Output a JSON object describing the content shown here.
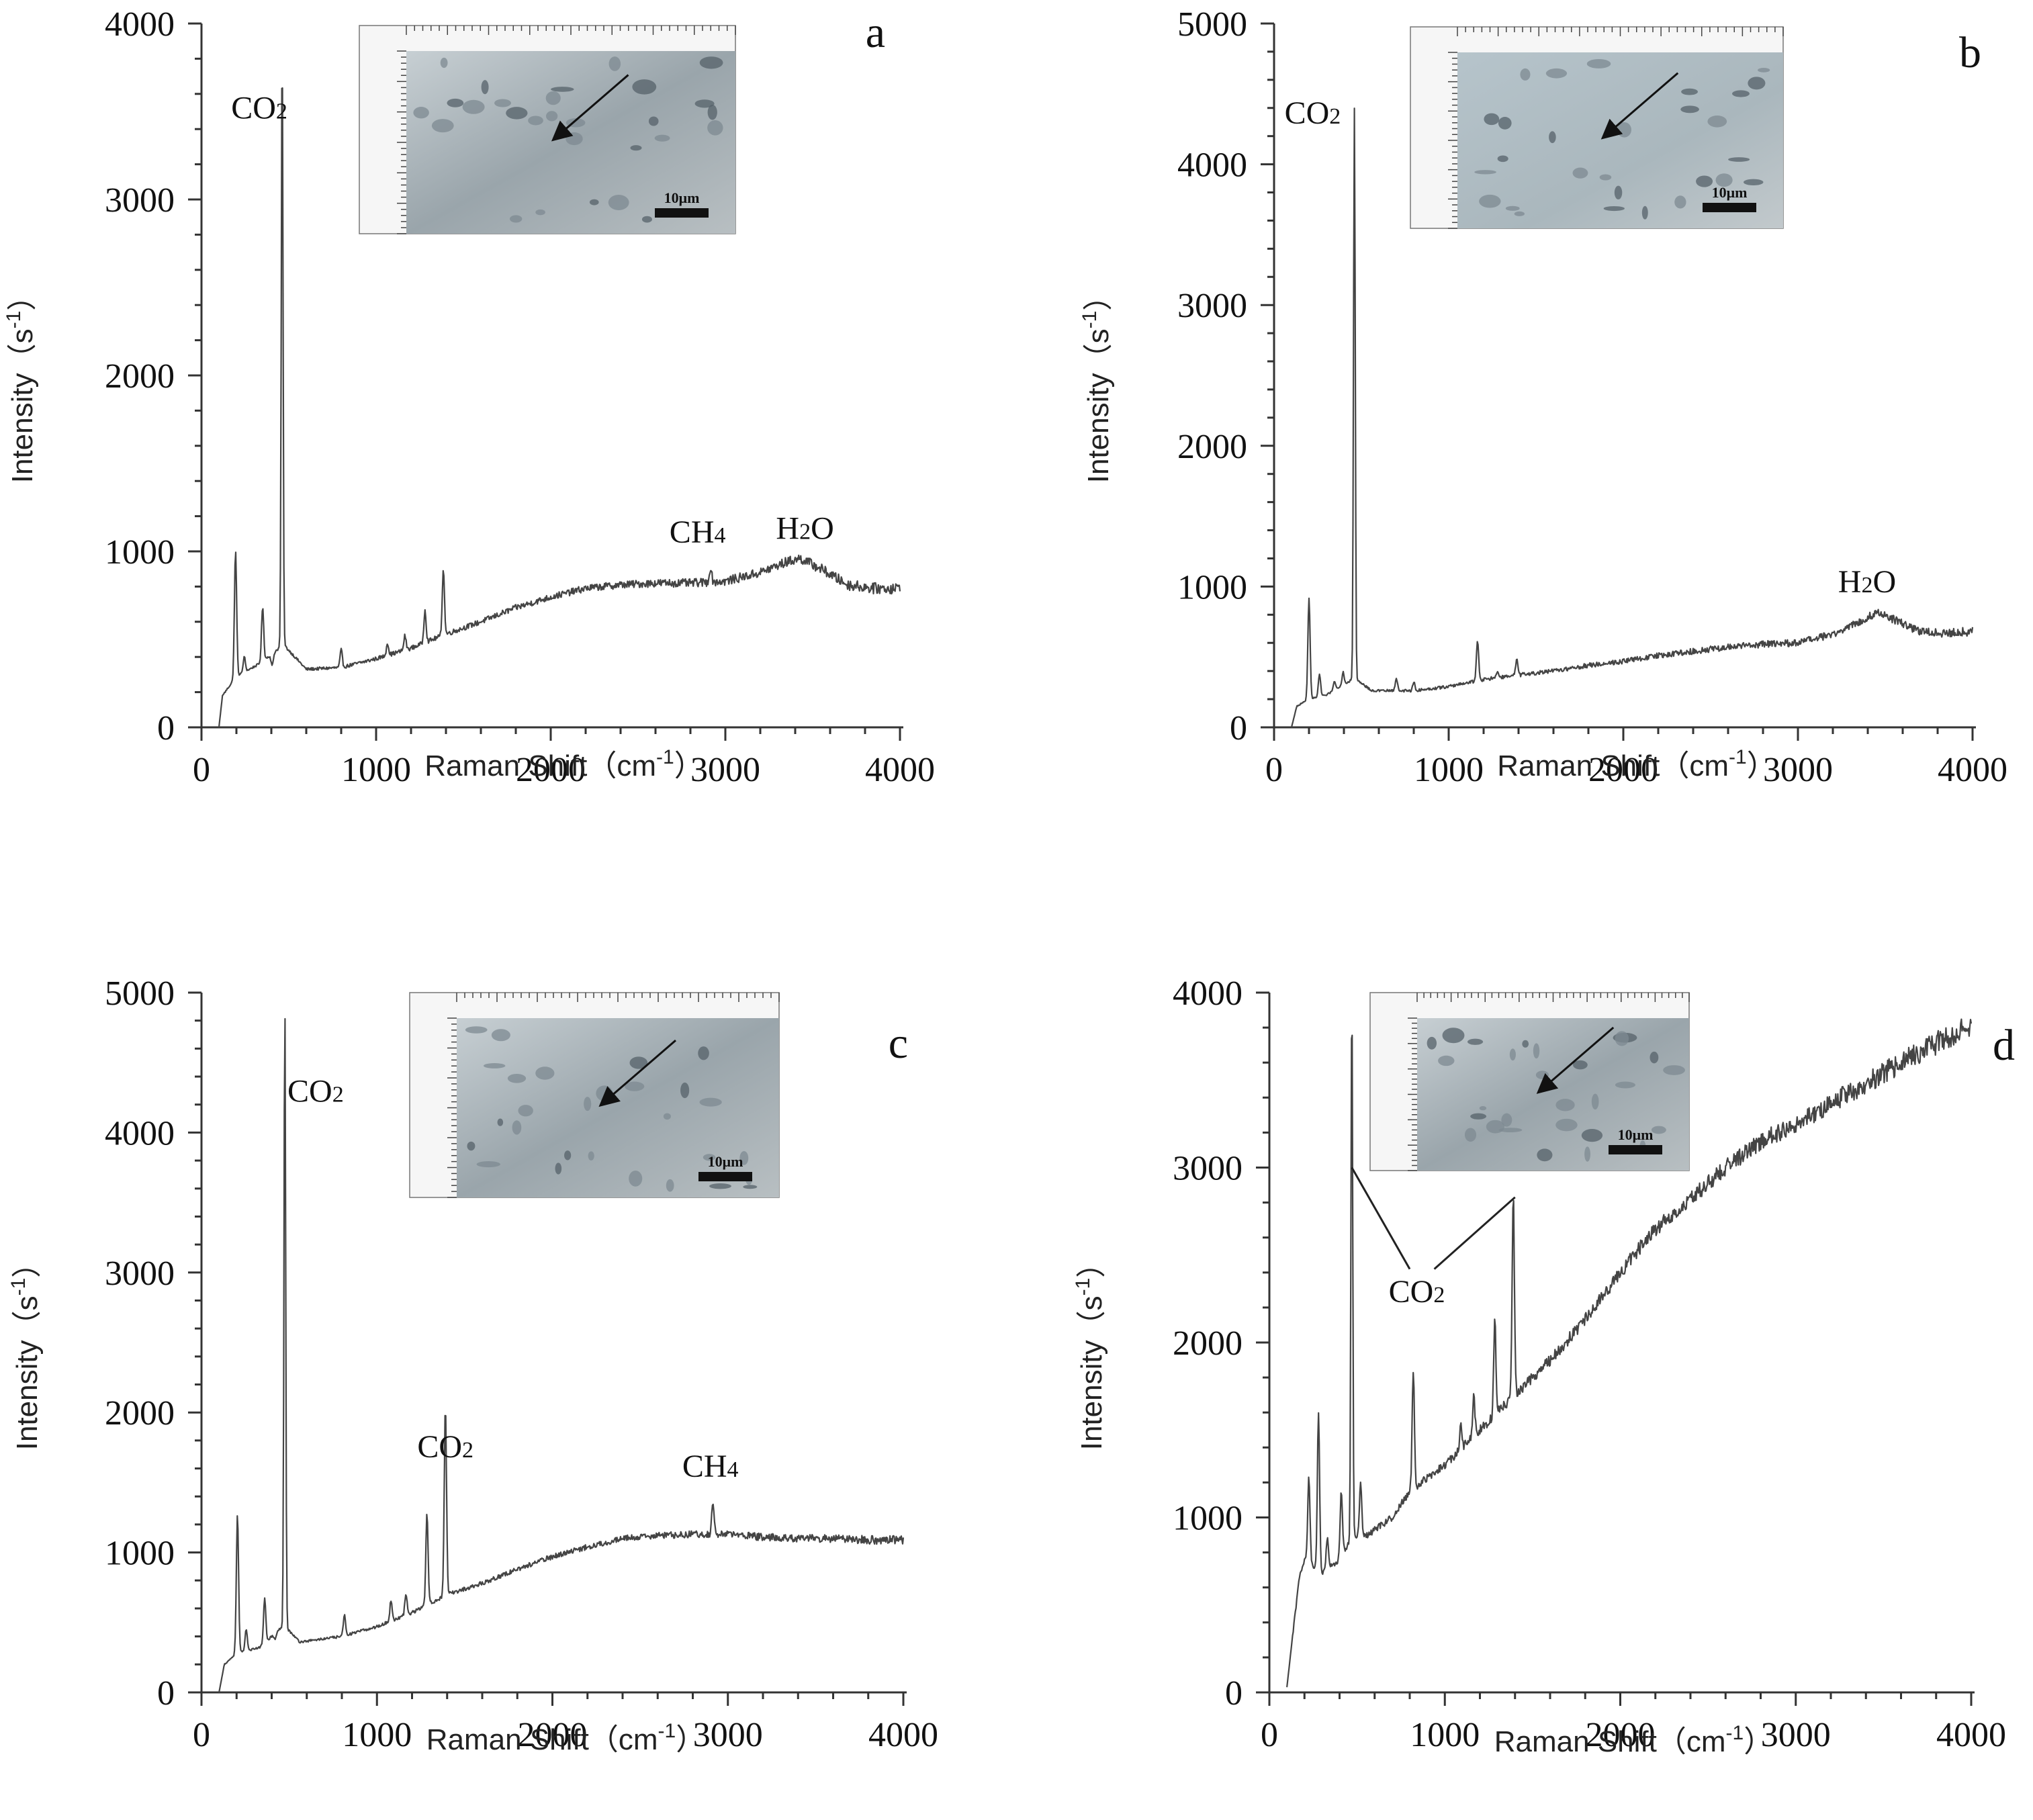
{
  "chart_data": [
    {
      "panel": "a",
      "type": "line",
      "xlabel": "Raman Shift（cm",
      "xlabel_sup": "-1",
      "xlabel_close": "）",
      "ylabel": "Intensity（s",
      "ylabel_sup": "-1",
      "ylabel_close": "）",
      "xlim": [
        0,
        4000
      ],
      "ylim": [
        0,
        4000
      ],
      "xticks": [
        0,
        1000,
        2000,
        3000,
        4000
      ],
      "yticks": [
        0,
        1000,
        2000,
        3000,
        4000
      ],
      "baseline": [
        [
          100,
          0
        ],
        [
          120,
          180
        ],
        [
          200,
          290
        ],
        [
          330,
          360
        ],
        [
          470,
          470
        ],
        [
          600,
          330
        ],
        [
          800,
          340
        ],
        [
          1000,
          390
        ],
        [
          1200,
          450
        ],
        [
          1400,
          530
        ],
        [
          1600,
          600
        ],
        [
          1800,
          680
        ],
        [
          2000,
          740
        ],
        [
          2200,
          790
        ],
        [
          2400,
          810
        ],
        [
          2600,
          820
        ],
        [
          2800,
          820
        ],
        [
          3000,
          830
        ],
        [
          3200,
          880
        ],
        [
          3350,
          940
        ],
        [
          3430,
          960
        ],
        [
          3550,
          900
        ],
        [
          3700,
          810
        ],
        [
          3850,
          790
        ],
        [
          4000,
          790
        ]
      ],
      "peaks": [
        [
          195,
          1000
        ],
        [
          245,
          400
        ],
        [
          350,
          680
        ],
        [
          405,
          350
        ],
        [
          462,
          3900
        ],
        [
          800,
          440
        ],
        [
          1065,
          480
        ],
        [
          1165,
          520
        ],
        [
          1280,
          670
        ],
        [
          1385,
          900
        ],
        [
          2915,
          910
        ]
      ],
      "annotations": [
        {
          "text": "CO",
          "sub": "2",
          "x": 170,
          "y": 3460
        },
        {
          "text": "CH",
          "sub": "4",
          "x": 2680,
          "y": 1050
        },
        {
          "text": "H",
          "sub": "2",
          "rest": "O",
          "x": 3290,
          "y": 1070
        }
      ],
      "inset_scale": "10μm"
    },
    {
      "panel": "b",
      "type": "line",
      "xlabel": "Raman Shift（cm",
      "xlabel_sup": "-1",
      "xlabel_close": "）",
      "ylabel": "Intensity（s",
      "ylabel_sup": "-1",
      "ylabel_close": "）",
      "xlim": [
        0,
        4000
      ],
      "ylim": [
        0,
        5000
      ],
      "xticks": [
        0,
        1000,
        2000,
        3000,
        4000
      ],
      "yticks": [
        0,
        1000,
        2000,
        3000,
        4000,
        5000
      ],
      "baseline": [
        [
          100,
          0
        ],
        [
          130,
          150
        ],
        [
          200,
          200
        ],
        [
          300,
          230
        ],
        [
          460,
          350
        ],
        [
          560,
          260
        ],
        [
          800,
          260
        ],
        [
          1000,
          290
        ],
        [
          1200,
          340
        ],
        [
          1400,
          370
        ],
        [
          1600,
          400
        ],
        [
          1800,
          440
        ],
        [
          2000,
          470
        ],
        [
          2200,
          510
        ],
        [
          2400,
          540
        ],
        [
          2600,
          570
        ],
        [
          2800,
          590
        ],
        [
          3000,
          600
        ],
        [
          3200,
          660
        ],
        [
          3350,
          750
        ],
        [
          3460,
          820
        ],
        [
          3560,
          760
        ],
        [
          3700,
          680
        ],
        [
          3850,
          670
        ],
        [
          4000,
          680
        ]
      ],
      "peaks": [
        [
          200,
          920
        ],
        [
          260,
          380
        ],
        [
          345,
          330
        ],
        [
          395,
          390
        ],
        [
          460,
          4400
        ],
        [
          700,
          350
        ],
        [
          800,
          320
        ],
        [
          1070,
          310
        ],
        [
          1165,
          620
        ],
        [
          1280,
          400
        ],
        [
          1390,
          480
        ]
      ],
      "annotations": [
        {
          "text": "CO",
          "sub": "2",
          "x": 60,
          "y": 4290
        },
        {
          "text": "H",
          "sub": "2",
          "rest": "O",
          "x": 3230,
          "y": 960
        }
      ],
      "inset_scale": "10μm"
    },
    {
      "panel": "c",
      "type": "line",
      "xlabel": "Raman Shift（cm",
      "xlabel_sup": "-1",
      "xlabel_close": "）",
      "ylabel": "Intensity（s",
      "ylabel_sup": "-1",
      "ylabel_close": "）",
      "xlim": [
        0,
        4000
      ],
      "ylim": [
        0,
        5000
      ],
      "xticks": [
        0,
        1000,
        2000,
        3000,
        4000
      ],
      "yticks": [
        0,
        1000,
        2000,
        3000,
        4000,
        5000
      ],
      "baseline": [
        [
          100,
          0
        ],
        [
          130,
          200
        ],
        [
          200,
          280
        ],
        [
          330,
          320
        ],
        [
          470,
          480
        ],
        [
          560,
          360
        ],
        [
          800,
          400
        ],
        [
          1000,
          470
        ],
        [
          1200,
          570
        ],
        [
          1400,
          700
        ],
        [
          1600,
          780
        ],
        [
          1800,
          880
        ],
        [
          2000,
          970
        ],
        [
          2200,
          1040
        ],
        [
          2400,
          1100
        ],
        [
          2600,
          1120
        ],
        [
          2800,
          1130
        ],
        [
          3000,
          1130
        ],
        [
          3200,
          1110
        ],
        [
          3400,
          1100
        ],
        [
          3600,
          1100
        ],
        [
          3800,
          1090
        ],
        [
          4000,
          1090
        ]
      ],
      "peaks": [
        [
          205,
          1270
        ],
        [
          255,
          450
        ],
        [
          360,
          680
        ],
        [
          420,
          380
        ],
        [
          475,
          4900
        ],
        [
          815,
          560
        ],
        [
          1080,
          660
        ],
        [
          1165,
          700
        ],
        [
          1285,
          1280
        ],
        [
          1390,
          2030
        ],
        [
          2915,
          1370
        ]
      ],
      "annotations": [
        {
          "text": "CO",
          "sub": "2",
          "x": 490,
          "y": 4220
        },
        {
          "text": "CO",
          "sub": "2",
          "x": 1230,
          "y": 1680
        },
        {
          "text": "CH",
          "sub": "4",
          "x": 2740,
          "y": 1540
        }
      ],
      "inset_scale": "10μm"
    },
    {
      "panel": "d",
      "type": "line",
      "xlabel": "Raman Shift（cm",
      "xlabel_sup": "-1",
      "xlabel_close": "）",
      "ylabel": "Intensity（s",
      "ylabel_sup": "-1",
      "ylabel_close": "）",
      "xlim": [
        0,
        4000
      ],
      "ylim": [
        0,
        4000
      ],
      "xticks": [
        0,
        1000,
        2000,
        3000,
        4000
      ],
      "yticks": [
        0,
        1000,
        2000,
        3000,
        4000
      ],
      "baseline": [
        [
          100,
          30
        ],
        [
          130,
          300
        ],
        [
          170,
          650
        ],
        [
          200,
          760
        ],
        [
          300,
          680
        ],
        [
          400,
          760
        ],
        [
          470,
          880
        ],
        [
          560,
          900
        ],
        [
          700,
          1000
        ],
        [
          800,
          1150
        ],
        [
          1000,
          1300
        ],
        [
          1200,
          1500
        ],
        [
          1400,
          1700
        ],
        [
          1600,
          1900
        ],
        [
          1800,
          2130
        ],
        [
          2000,
          2400
        ],
        [
          2200,
          2650
        ],
        [
          2400,
          2820
        ],
        [
          2600,
          3000
        ],
        [
          2800,
          3150
        ],
        [
          3000,
          3250
        ],
        [
          3200,
          3370
        ],
        [
          3400,
          3480
        ],
        [
          3600,
          3600
        ],
        [
          3800,
          3710
        ],
        [
          4000,
          3820
        ]
      ],
      "peaks": [
        [
          225,
          1240
        ],
        [
          280,
          1600
        ],
        [
          330,
          880
        ],
        [
          410,
          1150
        ],
        [
          470,
          4000
        ],
        [
          520,
          1200
        ],
        [
          820,
          1840
        ],
        [
          1090,
          1520
        ],
        [
          1165,
          1700
        ],
        [
          1285,
          2130
        ],
        [
          1390,
          2840
        ]
      ],
      "annotations": [
        {
          "text": "CO",
          "sub": "2",
          "x": 680,
          "y": 2230
        }
      ],
      "annotation_lines": [
        [
          [
            470,
            3000
          ],
          [
            800,
            2420
          ]
        ],
        [
          [
            940,
            2420
          ],
          [
            1400,
            2830
          ]
        ]
      ],
      "inset_scale": "10μm"
    }
  ]
}
